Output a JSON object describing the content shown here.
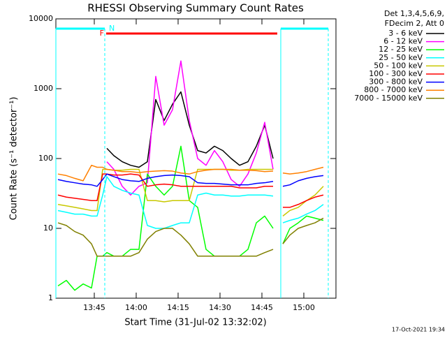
{
  "chart_data": {
    "type": "line",
    "title": "RHESSI Observing Summary Count Rates",
    "x_label": "Start Time (31-Jul-02 13:32:02)",
    "y_label": "Count Rate (s⁻¹ detector⁻¹)",
    "legend_title": [
      "Det 1,3,4,5,6,9,",
      "FDecim 2, Att 0"
    ],
    "footer": "17-Oct-2021 19:34",
    "log_y": true,
    "legend": "right",
    "xlim": [
      811.25,
      911.5
    ],
    "ylim": [
      1,
      10000
    ],
    "xticks": [
      {
        "value": 825,
        "label": "13:45"
      },
      {
        "value": 840,
        "label": "14:00"
      },
      {
        "value": 855,
        "label": "14:15"
      },
      {
        "value": 870,
        "label": "14:30"
      },
      {
        "value": 885,
        "label": "14:45"
      },
      {
        "value": 900,
        "label": "15:00"
      }
    ],
    "yticks": [
      1,
      10,
      100,
      1000,
      10000
    ],
    "status": [
      {
        "label": "N",
        "color": "#00ffff",
        "intervals": [
          [
            811.25,
            828.75
          ],
          [
            891.75,
            908.75
          ]
        ]
      },
      {
        "label": "F",
        "color": "#ff0000",
        "intervals": [
          [
            829.25,
            890.5
          ]
        ]
      }
    ],
    "x": [
      812,
      815,
      818,
      821,
      824,
      826,
      828,
      829.5,
      832,
      835,
      838,
      841,
      844,
      847,
      850,
      853,
      856,
      859,
      862,
      865,
      868,
      871,
      874,
      877,
      880,
      883,
      886,
      889,
      890.5,
      892.5,
      895,
      898,
      901,
      904,
      907
    ],
    "series": [
      {
        "name": "3 - 6 keV",
        "color": "#000000",
        "values": [
          null,
          null,
          null,
          null,
          null,
          null,
          null,
          140,
          110,
          90,
          80,
          75,
          90,
          700,
          350,
          600,
          900,
          300,
          130,
          120,
          150,
          130,
          100,
          80,
          90,
          150,
          300,
          100,
          null,
          null,
          null,
          null,
          null,
          null,
          null
        ]
      },
      {
        "name": "6 - 12 keV",
        "color": "#ff00ff",
        "values": [
          null,
          null,
          null,
          null,
          null,
          null,
          null,
          90,
          70,
          40,
          30,
          40,
          45,
          1500,
          300,
          500,
          2500,
          350,
          100,
          80,
          130,
          90,
          50,
          40,
          60,
          120,
          330,
          70,
          null,
          null,
          null,
          null,
          null,
          null,
          null
        ]
      },
      {
        "name": "12 - 25 keV",
        "color": "#00ff00",
        "values": [
          1.5,
          1.8,
          1.3,
          1.6,
          1.4,
          4,
          4,
          4.5,
          4,
          4,
          5,
          5,
          60,
          40,
          30,
          40,
          150,
          25,
          20,
          5,
          4,
          4,
          4,
          4,
          5,
          12,
          15,
          10,
          null,
          6,
          10,
          12,
          15,
          14,
          13
        ]
      },
      {
        "name": "25 - 50 keV",
        "color": "#00ffff",
        "values": [
          18,
          17,
          16,
          16,
          15,
          15,
          30,
          55,
          40,
          35,
          32,
          30,
          11,
          10,
          10,
          11,
          12,
          12,
          30,
          32,
          30,
          30,
          29,
          29,
          30,
          30,
          30,
          29,
          null,
          12,
          13,
          14,
          16,
          18,
          22
        ]
      },
      {
        "name": "50 - 100 keV",
        "color": "#c8c800",
        "values": [
          22,
          21,
          20,
          19,
          18,
          18,
          70,
          70,
          68,
          68,
          70,
          70,
          25,
          25,
          24,
          25,
          25,
          25,
          70,
          70,
          70,
          70,
          68,
          68,
          70,
          70,
          70,
          70,
          null,
          15,
          18,
          20,
          25,
          30,
          40
        ]
      },
      {
        "name": "100 - 300 keV",
        "color": "#ff0000",
        "values": [
          30,
          28,
          27,
          26,
          25,
          25,
          60,
          60,
          58,
          58,
          60,
          58,
          40,
          42,
          43,
          42,
          40,
          40,
          40,
          40,
          40,
          40,
          40,
          38,
          38,
          38,
          40,
          40,
          null,
          20,
          20,
          22,
          25,
          28,
          30
        ]
      },
      {
        "name": "300 - 800 keV",
        "color": "#0000ff",
        "values": [
          50,
          47,
          45,
          43,
          42,
          40,
          50,
          60,
          55,
          50,
          48,
          47,
          52,
          55,
          57,
          58,
          57,
          55,
          45,
          44,
          44,
          43,
          42,
          42,
          42,
          44,
          45,
          47,
          null,
          40,
          42,
          48,
          52,
          55,
          57
        ]
      },
      {
        "name": "800 - 7000 keV",
        "color": "#ff8000",
        "values": [
          60,
          57,
          52,
          48,
          80,
          75,
          75,
          70,
          68,
          65,
          65,
          63,
          65,
          66,
          67,
          66,
          62,
          60,
          65,
          68,
          70,
          70,
          70,
          68,
          68,
          67,
          65,
          66,
          null,
          62,
          60,
          62,
          65,
          70,
          75
        ]
      },
      {
        "name": "7000 - 15000 keV",
        "color": "#808000",
        "values": [
          12,
          11,
          9,
          8,
          6,
          4,
          4,
          4,
          4,
          4,
          4,
          4.5,
          7,
          9,
          10,
          10,
          8,
          6,
          4,
          4,
          4,
          4,
          4,
          4,
          4,
          4,
          4.5,
          5,
          null,
          6,
          8,
          10,
          11,
          12,
          14
        ]
      }
    ]
  }
}
